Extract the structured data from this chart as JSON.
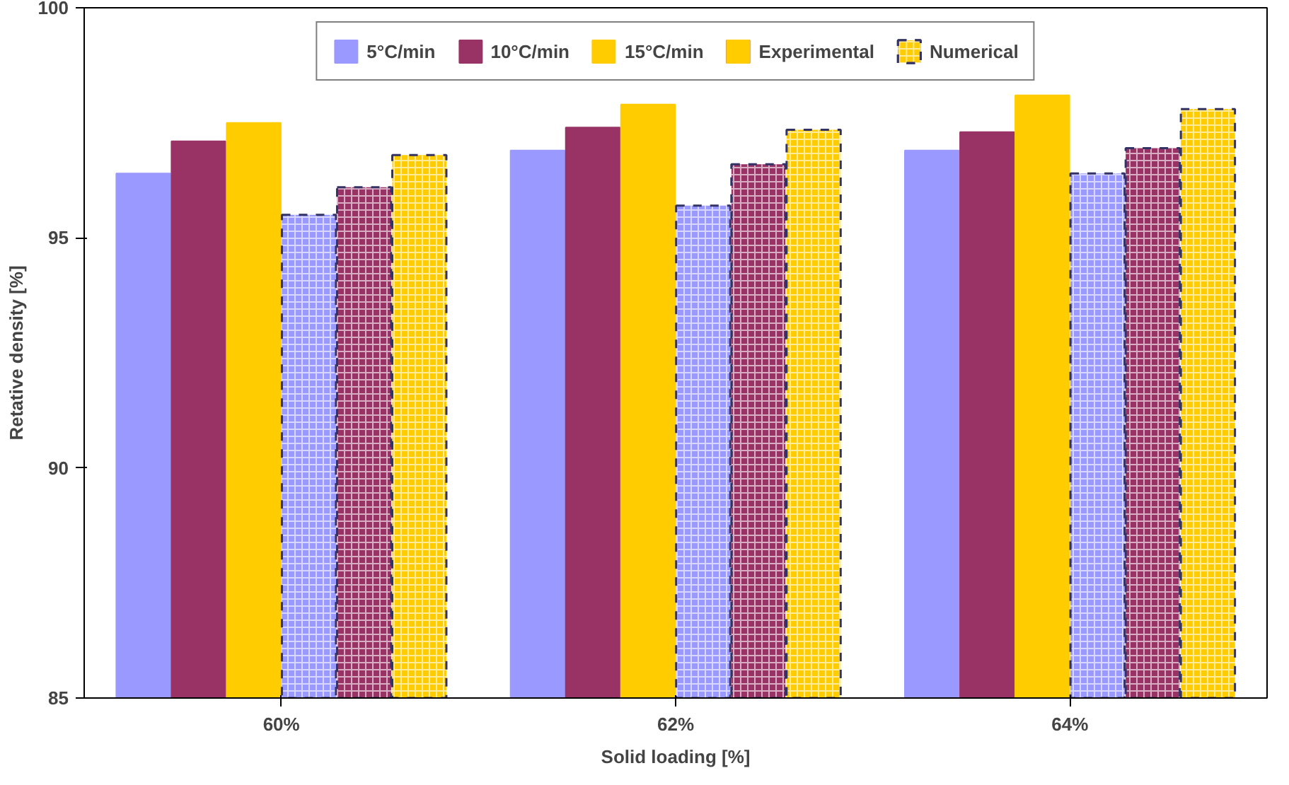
{
  "chart_data": {
    "type": "bar",
    "xlabel": "Solid loading [%]",
    "ylabel": "Retative density [%]",
    "categories": [
      "60%",
      "62%",
      "64%"
    ],
    "series": [
      {
        "name": "5°C/min",
        "color": "#9999ff",
        "values": [
          96.4,
          96.9,
          96.9
        ]
      },
      {
        "name": "10°C/min",
        "color": "#993366",
        "values": [
          97.1,
          97.4,
          97.3
        ]
      },
      {
        "name": "15°C/min",
        "color": "#ffcc00",
        "values": [
          97.5,
          97.9,
          98.1
        ]
      },
      {
        "color": "#9999ff",
        "line_style": "dashed",
        "values": [
          95.5,
          95.7,
          96.4
        ]
      },
      {
        "color": "#993366",
        "line_style": "dashed",
        "values": [
          96.1,
          96.6,
          96.95
        ]
      },
      {
        "color": "#ffcc00",
        "line_style": "dashed",
        "values": [
          96.8,
          97.35,
          97.8
        ]
      }
    ],
    "annotations": [
      "Experimental",
      "Numerical"
    ],
    "ylim": [
      85,
      100
    ],
    "yticks": [
      85,
      90,
      95,
      100
    ],
    "grid": false,
    "legend": "top"
  }
}
